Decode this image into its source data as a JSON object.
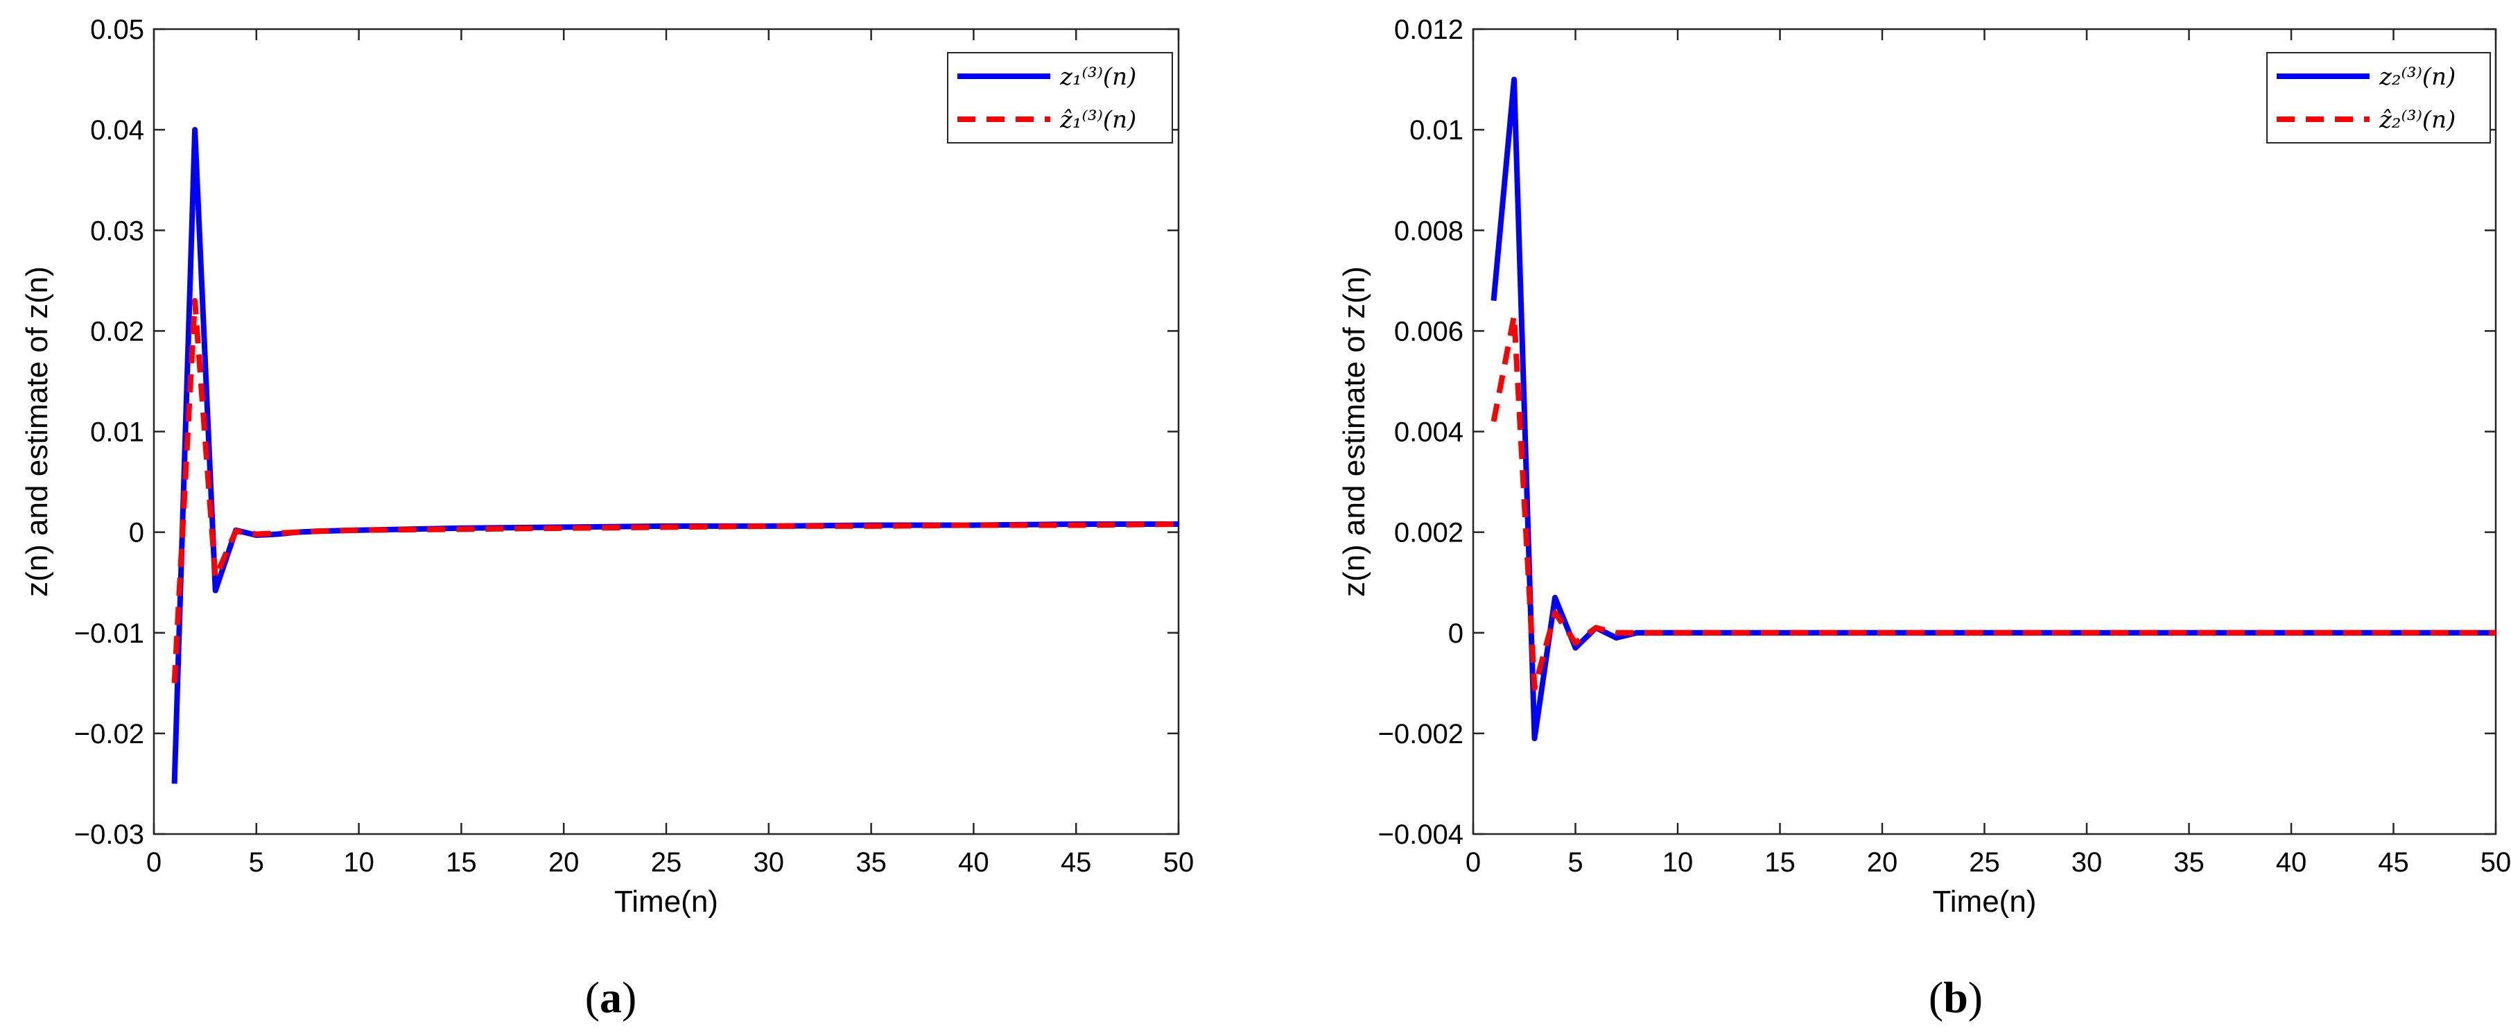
{
  "chart_data": [
    {
      "type": "line",
      "panel_label": "(a)",
      "panel_label_parts": [
        "(",
        "a",
        ")"
      ],
      "xlabel": "Time(n)",
      "ylabel": "z(n) and estimate of z(n)",
      "xlim": [
        0,
        50
      ],
      "ylim": [
        -0.03,
        0.05
      ],
      "xticks": [
        0,
        5,
        10,
        15,
        20,
        25,
        30,
        35,
        40,
        45,
        50
      ],
      "xtick_labels": [
        "0",
        "5",
        "10",
        "15",
        "20",
        "25",
        "30",
        "35",
        "40",
        "45",
        "50"
      ],
      "yticks": [
        -0.03,
        -0.02,
        -0.01,
        0,
        0.01,
        0.02,
        0.03,
        0.04,
        0.05
      ],
      "ytick_labels": [
        "−0.03",
        "−0.02",
        "−0.01",
        "0",
        "0.01",
        "0.02",
        "0.03",
        "0.04",
        "0.05"
      ],
      "grid": false,
      "legend_position": "top-right",
      "series": [
        {
          "name": "z₁⁽³⁾(n)",
          "color": "#0000ff",
          "style": "solid",
          "x": [
            1,
            2,
            3,
            4,
            5,
            6,
            7,
            8,
            10,
            15,
            20,
            25,
            30,
            35,
            40,
            45,
            50
          ],
          "y": [
            -0.025,
            0.04,
            -0.0058,
            0.0002,
            -0.0003,
            -0.0002,
            0.0,
            0.0001,
            0.0002,
            0.0004,
            0.0005,
            0.0006,
            0.0006,
            0.0007,
            0.0007,
            0.0008,
            0.0008
          ]
        },
        {
          "name": "ẑ₁⁽³⁾(n)",
          "color": "#ff0000",
          "style": "dashed",
          "x": [
            1,
            2,
            3,
            4,
            5,
            6,
            7,
            8,
            10,
            15,
            20,
            25,
            30,
            35,
            40,
            45,
            50
          ],
          "y": [
            -0.015,
            0.023,
            -0.0045,
            0.0001,
            -0.0002,
            -0.0001,
            0.0,
            0.0001,
            0.0002,
            0.0003,
            0.0004,
            0.0005,
            0.0006,
            0.0006,
            0.0007,
            0.0007,
            0.0008
          ]
        }
      ]
    },
    {
      "type": "line",
      "panel_label": "(b)",
      "panel_label_parts": [
        "(",
        "b",
        ")"
      ],
      "xlabel": "Time(n)",
      "ylabel": "z(n) and estimate of z(n)",
      "xlim": [
        0,
        50
      ],
      "ylim": [
        -0.004,
        0.012
      ],
      "xticks": [
        0,
        5,
        10,
        15,
        20,
        25,
        30,
        35,
        40,
        45,
        50
      ],
      "xtick_labels": [
        "0",
        "5",
        "10",
        "15",
        "20",
        "25",
        "30",
        "35",
        "40",
        "45",
        "50"
      ],
      "yticks": [
        -0.004,
        -0.002,
        0,
        0.002,
        0.004,
        0.006,
        0.008,
        0.01,
        0.012
      ],
      "ytick_labels": [
        "−0.004",
        "−0.002",
        "0",
        "0.002",
        "0.004",
        "0.006",
        "0.008",
        "0.01",
        "0.012"
      ],
      "grid": false,
      "legend_position": "top-right",
      "series": [
        {
          "name": "z₂⁽³⁾(n)",
          "color": "#0000ff",
          "style": "solid",
          "x": [
            1,
            2,
            3,
            4,
            5,
            6,
            7,
            8,
            9,
            10,
            20,
            30,
            40,
            50
          ],
          "y": [
            0.0066,
            0.011,
            -0.0021,
            0.0007,
            -0.0003,
            0.0001,
            -0.0001,
            0.0,
            0.0,
            0.0,
            0.0,
            0.0,
            0.0,
            0.0
          ]
        },
        {
          "name": "ẑ₂⁽³⁾(n)",
          "color": "#ff0000",
          "style": "dashed",
          "x": [
            1,
            2,
            3,
            4,
            5,
            6,
            7,
            8,
            9,
            10,
            20,
            30,
            40,
            50
          ],
          "y": [
            0.0042,
            0.0063,
            -0.0011,
            0.0004,
            -0.0002,
            0.0001,
            0.0,
            0.0,
            0.0,
            0.0,
            0.0,
            0.0,
            0.0,
            0.0
          ]
        }
      ]
    }
  ]
}
